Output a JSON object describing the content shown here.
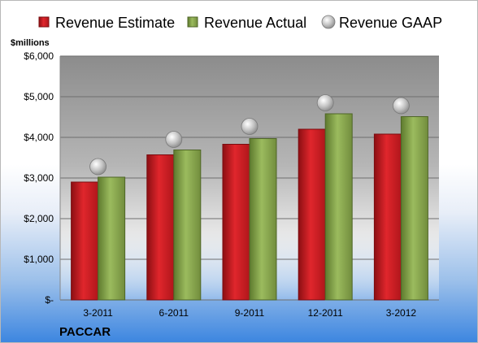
{
  "chart_data": {
    "type": "bar",
    "company": "PACCAR",
    "unit_label": "$millions",
    "categories": [
      "3-2011",
      "6-2011",
      "9-2011",
      "12-2011",
      "3-2012"
    ],
    "series": [
      {
        "name": "Revenue Estimate",
        "kind": "bar",
        "color": "#cc1f24",
        "values": [
          2900,
          3570,
          3830,
          4200,
          4080
        ]
      },
      {
        "name": "Revenue Actual",
        "kind": "bar",
        "color": "#8aa650",
        "values": [
          3020,
          3690,
          3970,
          4580,
          4510
        ]
      },
      {
        "name": "Revenue GAAP",
        "kind": "marker",
        "color": "#b8b8b8",
        "values": [
          3280,
          3950,
          4270,
          4850,
          4780
        ]
      }
    ],
    "yticks": [
      0,
      1000,
      2000,
      3000,
      4000,
      5000,
      6000
    ],
    "ytick_labels": [
      "$-",
      "$1,000",
      "$2,000",
      "$3,000",
      "$4,000",
      "$5,000",
      "$6,000"
    ],
    "ylim": [
      0,
      6000
    ],
    "grid": true,
    "legend_position": "top"
  }
}
